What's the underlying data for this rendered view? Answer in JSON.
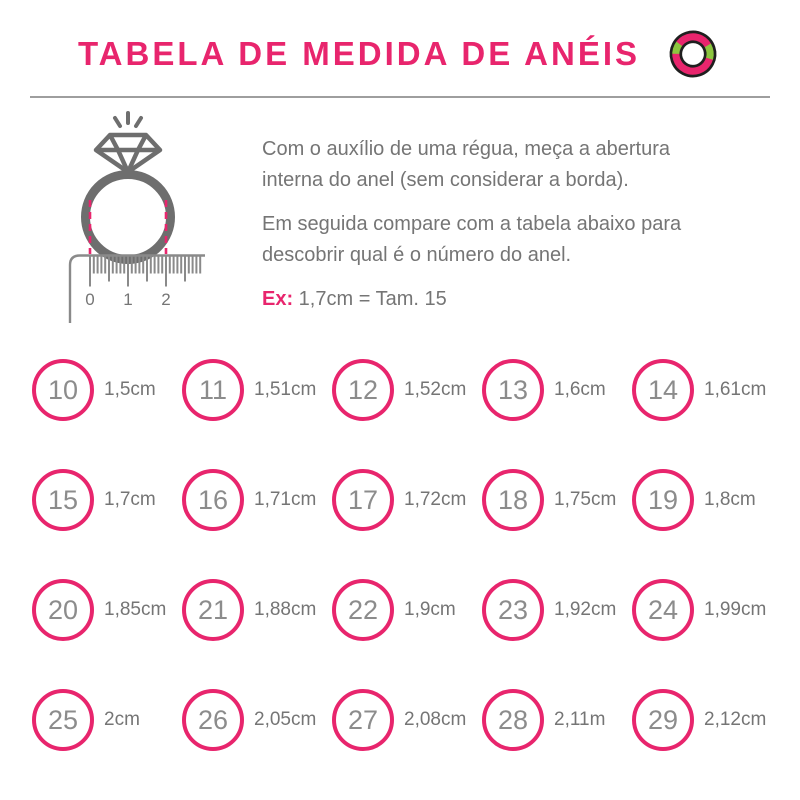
{
  "header": {
    "title": "TABELA DE MEDIDA DE ANÉIS",
    "accent_color": "#e8256d",
    "logo": {
      "ring_color": "#e8256d",
      "green_accent": "#8cc63f",
      "outline_color": "#1f1f1f"
    }
  },
  "instructions": {
    "paragraph1": "Com o auxílio de uma régua, meça a abertura interna do anel (sem considerar a borda).",
    "paragraph2": "Em seguida compare com a tabela abaixo para descobrir qual é o número do anel.",
    "example_label": "Ex:",
    "example_text": " 1,7cm = Tam. 15"
  },
  "illustration": {
    "description": "ring-with-diamond-above-ruler",
    "ring_color": "#6e6e6e",
    "dash_color": "#e8256d",
    "ruler_color": "#8a8a8a",
    "ruler_numbers": [
      "0",
      "1",
      "2"
    ]
  },
  "size_table": {
    "items": [
      {
        "size": "10",
        "measurement": "1,5cm"
      },
      {
        "size": "11",
        "measurement": "1,51cm"
      },
      {
        "size": "12",
        "measurement": "1,52cm"
      },
      {
        "size": "13",
        "measurement": "1,6cm"
      },
      {
        "size": "14",
        "measurement": "1,61cm"
      },
      {
        "size": "15",
        "measurement": "1,7cm"
      },
      {
        "size": "16",
        "measurement": "1,71cm"
      },
      {
        "size": "17",
        "measurement": "1,72cm"
      },
      {
        "size": "18",
        "measurement": "1,75cm"
      },
      {
        "size": "19",
        "measurement": "1,8cm"
      },
      {
        "size": "20",
        "measurement": "1,85cm"
      },
      {
        "size": "21",
        "measurement": "1,88cm"
      },
      {
        "size": "22",
        "measurement": "1,9cm"
      },
      {
        "size": "23",
        "measurement": "1,92cm"
      },
      {
        "size": "24",
        "measurement": "1,99cm"
      },
      {
        "size": "25",
        "measurement": "2cm"
      },
      {
        "size": "26",
        "measurement": "2,05cm"
      },
      {
        "size": "27",
        "measurement": "2,08cm"
      },
      {
        "size": "28",
        "measurement": "2,11m"
      },
      {
        "size": "29",
        "measurement": "2,12cm"
      }
    ]
  }
}
